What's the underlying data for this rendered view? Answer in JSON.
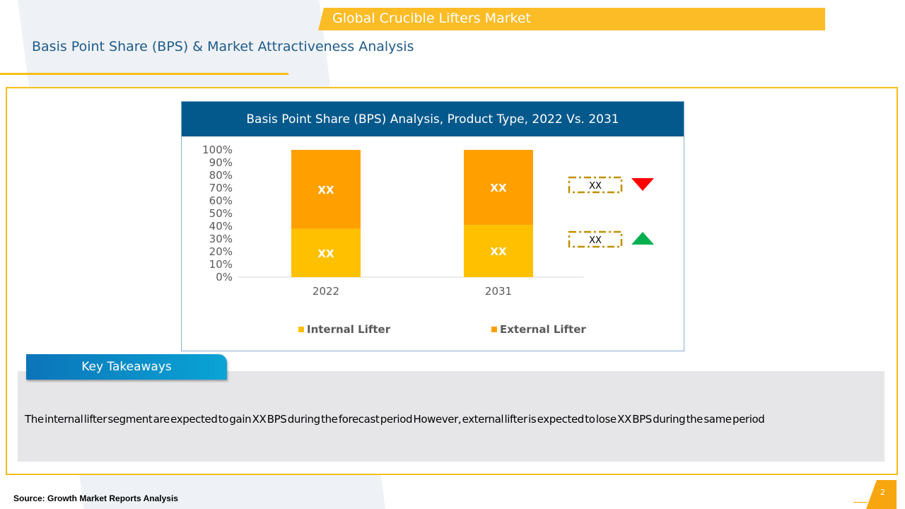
{
  "header": {
    "banner_title": "Global Crucible Lifters Market",
    "page_title": "Basis Point Share (BPS) & Market Attractiveness Analysis"
  },
  "chart_data": {
    "type": "bar",
    "stacked": true,
    "title": "Basis Point Share (BPS) Analysis, Product Type, 2022 Vs. 2031",
    "categories": [
      "2022",
      "2031"
    ],
    "series": [
      {
        "name": "Internal Lifter",
        "values": [
          38,
          41
        ],
        "labels": [
          "XX",
          "XX"
        ],
        "color": "#ffc000"
      },
      {
        "name": "External Lifter",
        "values": [
          62,
          59
        ],
        "labels": [
          "XX",
          "XX"
        ],
        "color": "#ffa000"
      }
    ],
    "yticks": [
      "0%",
      "10%",
      "20%",
      "30%",
      "40%",
      "50%",
      "60%",
      "70%",
      "80%",
      "90%",
      "100%"
    ],
    "ylim": [
      0,
      100
    ],
    "grid": false,
    "legend_position": "bottom",
    "bps_indicators": [
      {
        "label": "XX",
        "direction": "down",
        "color": "#ff0000",
        "series": "External Lifter"
      },
      {
        "label": "XX",
        "direction": "up",
        "color": "#00b050",
        "series": "Internal Lifter"
      }
    ]
  },
  "takeaways": {
    "tab_label": "Key Takeaways",
    "text": "The internal lifter segment are expected to gain XX BPS during the forecast period However, external lifter is expected to lose XX BPS during the same period"
  },
  "footer": {
    "source": "Source: Growth Market Reports Analysis",
    "page_number": "2"
  },
  "colors": {
    "banner": "#fbbc25",
    "chart_header": "#04598c",
    "frame": "#f6be1a",
    "indicator_border": "#bf9000"
  }
}
